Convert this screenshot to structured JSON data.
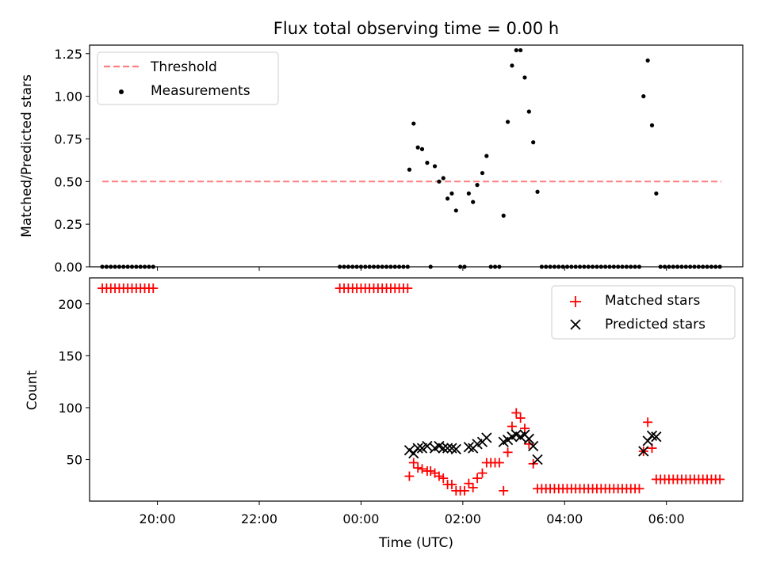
{
  "chart_data": [
    {
      "panel": "top",
      "type": "scatter",
      "title": "Flux total observing time = 0.00 h",
      "xlabel": "",
      "ylabel": "Matched/Predicted stars",
      "ylim": [
        0,
        1.3
      ],
      "yticks": [
        "0.00",
        "0.25",
        "0.50",
        "0.75",
        "1.00",
        "1.25"
      ],
      "legend_position": "top-left",
      "threshold": {
        "name": "Threshold",
        "value": 0.5,
        "x_range": [
          "18:55",
          "07:05"
        ],
        "color": "#ff7f7f"
      },
      "series": [
        {
          "name": "Measurements",
          "color": "#000000",
          "points": [
            [
              "18:55",
              0
            ],
            [
              "19:00",
              0
            ],
            [
              "19:05",
              0
            ],
            [
              "19:10",
              0
            ],
            [
              "19:15",
              0
            ],
            [
              "19:20",
              0
            ],
            [
              "19:25",
              0
            ],
            [
              "19:30",
              0
            ],
            [
              "19:35",
              0
            ],
            [
              "19:40",
              0
            ],
            [
              "19:45",
              0
            ],
            [
              "19:50",
              0
            ],
            [
              "19:55",
              0
            ],
            [
              "23:35",
              0
            ],
            [
              "23:40",
              0
            ],
            [
              "23:45",
              0
            ],
            [
              "23:50",
              0
            ],
            [
              "23:55",
              0
            ],
            [
              "00:00",
              0
            ],
            [
              "00:05",
              0
            ],
            [
              "00:10",
              0
            ],
            [
              "00:15",
              0
            ],
            [
              "00:20",
              0
            ],
            [
              "00:25",
              0
            ],
            [
              "00:30",
              0
            ],
            [
              "00:35",
              0
            ],
            [
              "00:40",
              0
            ],
            [
              "00:45",
              0
            ],
            [
              "00:50",
              0
            ],
            [
              "00:55",
              0
            ],
            [
              "00:57",
              0.57
            ],
            [
              "01:02",
              0.84
            ],
            [
              "01:07",
              0.7
            ],
            [
              "01:12",
              0.69
            ],
            [
              "01:18",
              0.61
            ],
            [
              "01:22",
              0
            ],
            [
              "01:27",
              0.59
            ],
            [
              "01:32",
              0.5
            ],
            [
              "01:37",
              0.52
            ],
            [
              "01:42",
              0.4
            ],
            [
              "01:47",
              0.43
            ],
            [
              "01:52",
              0.33
            ],
            [
              "01:57",
              0
            ],
            [
              "02:02",
              0
            ],
            [
              "02:07",
              0.43
            ],
            [
              "02:12",
              0.38
            ],
            [
              "02:17",
              0.48
            ],
            [
              "02:23",
              0.55
            ],
            [
              "02:28",
              0.65
            ],
            [
              "02:33",
              0
            ],
            [
              "02:38",
              0
            ],
            [
              "02:43",
              0
            ],
            [
              "02:48",
              0.3
            ],
            [
              "02:53",
              0.85
            ],
            [
              "02:58",
              1.18
            ],
            [
              "03:03",
              1.27
            ],
            [
              "03:08",
              1.27
            ],
            [
              "03:13",
              1.11
            ],
            [
              "03:18",
              0.91
            ],
            [
              "03:23",
              0.73
            ],
            [
              "03:28",
              0.44
            ],
            [
              "03:33",
              0
            ],
            [
              "03:38",
              0
            ],
            [
              "03:43",
              0
            ],
            [
              "03:48",
              0
            ],
            [
              "03:53",
              0
            ],
            [
              "03:58",
              0
            ],
            [
              "04:03",
              0
            ],
            [
              "04:08",
              0
            ],
            [
              "04:13",
              0
            ],
            [
              "04:18",
              0
            ],
            [
              "04:23",
              0
            ],
            [
              "04:28",
              0
            ],
            [
              "04:33",
              0
            ],
            [
              "04:38",
              0
            ],
            [
              "04:43",
              0
            ],
            [
              "04:48",
              0
            ],
            [
              "04:53",
              0
            ],
            [
              "04:58",
              0
            ],
            [
              "05:03",
              0
            ],
            [
              "05:08",
              0
            ],
            [
              "05:13",
              0
            ],
            [
              "05:18",
              0
            ],
            [
              "05:23",
              0
            ],
            [
              "05:28",
              0
            ],
            [
              "05:33",
              1.0
            ],
            [
              "05:38",
              1.21
            ],
            [
              "05:43",
              0.83
            ],
            [
              "05:48",
              0.43
            ],
            [
              "05:53",
              0
            ],
            [
              "05:58",
              0
            ],
            [
              "06:03",
              0
            ],
            [
              "06:08",
              0
            ],
            [
              "06:13",
              0
            ],
            [
              "06:18",
              0
            ],
            [
              "06:23",
              0
            ],
            [
              "06:28",
              0
            ],
            [
              "06:33",
              0
            ],
            [
              "06:38",
              0
            ],
            [
              "06:43",
              0
            ],
            [
              "06:48",
              0
            ],
            [
              "06:53",
              0
            ],
            [
              "06:58",
              0
            ],
            [
              "07:03",
              0
            ]
          ]
        }
      ]
    },
    {
      "panel": "bottom",
      "type": "scatter",
      "xlabel": "Time (UTC)",
      "ylabel": "Count",
      "ylim": [
        10,
        225
      ],
      "yticks": [
        "50",
        "100",
        "150",
        "200"
      ],
      "xticks": [
        "20:00",
        "22:00",
        "00:00",
        "02:00",
        "04:00",
        "06:00"
      ],
      "xlim": [
        "18:40",
        "07:30"
      ],
      "legend_position": "top-right",
      "series": [
        {
          "name": "Matched stars",
          "marker": "plus",
          "color": "#ff0000",
          "points": [
            [
              "18:55",
              215
            ],
            [
              "19:00",
              215
            ],
            [
              "19:05",
              215
            ],
            [
              "19:10",
              215
            ],
            [
              "19:15",
              215
            ],
            [
              "19:20",
              215
            ],
            [
              "19:25",
              215
            ],
            [
              "19:30",
              215
            ],
            [
              "19:35",
              215
            ],
            [
              "19:40",
              215
            ],
            [
              "19:45",
              215
            ],
            [
              "19:50",
              215
            ],
            [
              "19:55",
              215
            ],
            [
              "23:35",
              215
            ],
            [
              "23:40",
              215
            ],
            [
              "23:45",
              215
            ],
            [
              "23:50",
              215
            ],
            [
              "23:55",
              215
            ],
            [
              "00:00",
              215
            ],
            [
              "00:05",
              215
            ],
            [
              "00:10",
              215
            ],
            [
              "00:15",
              215
            ],
            [
              "00:20",
              215
            ],
            [
              "00:25",
              215
            ],
            [
              "00:30",
              215
            ],
            [
              "00:35",
              215
            ],
            [
              "00:40",
              215
            ],
            [
              "00:45",
              215
            ],
            [
              "00:50",
              215
            ],
            [
              "00:55",
              215
            ],
            [
              "00:57",
              34
            ],
            [
              "01:02",
              47
            ],
            [
              "01:07",
              42
            ],
            [
              "01:12",
              41
            ],
            [
              "01:18",
              39
            ],
            [
              "01:22",
              39
            ],
            [
              "01:27",
              37
            ],
            [
              "01:32",
              34
            ],
            [
              "01:37",
              32
            ],
            [
              "01:42",
              26
            ],
            [
              "01:47",
              26
            ],
            [
              "01:52",
              20
            ],
            [
              "01:57",
              20
            ],
            [
              "02:02",
              20
            ],
            [
              "02:07",
              27
            ],
            [
              "02:12",
              23
            ],
            [
              "02:17",
              32
            ],
            [
              "02:23",
              37
            ],
            [
              "02:28",
              47
            ],
            [
              "02:33",
              47
            ],
            [
              "02:38",
              47
            ],
            [
              "02:43",
              47
            ],
            [
              "02:48",
              20
            ],
            [
              "02:53",
              57
            ],
            [
              "02:58",
              82
            ],
            [
              "03:03",
              95
            ],
            [
              "03:08",
              90
            ],
            [
              "03:13",
              80
            ],
            [
              "03:18",
              65
            ],
            [
              "03:23",
              46
            ],
            [
              "03:28",
              22
            ],
            [
              "03:33",
              22
            ],
            [
              "03:38",
              22
            ],
            [
              "03:43",
              22
            ],
            [
              "03:48",
              22
            ],
            [
              "03:53",
              22
            ],
            [
              "03:58",
              22
            ],
            [
              "04:03",
              22
            ],
            [
              "04:08",
              22
            ],
            [
              "04:13",
              22
            ],
            [
              "04:18",
              22
            ],
            [
              "04:23",
              22
            ],
            [
              "04:28",
              22
            ],
            [
              "04:33",
              22
            ],
            [
              "04:38",
              22
            ],
            [
              "04:43",
              22
            ],
            [
              "04:48",
              22
            ],
            [
              "04:53",
              22
            ],
            [
              "04:58",
              22
            ],
            [
              "05:03",
              22
            ],
            [
              "05:08",
              22
            ],
            [
              "05:13",
              22
            ],
            [
              "05:18",
              22
            ],
            [
              "05:23",
              22
            ],
            [
              "05:28",
              22
            ],
            [
              "05:33",
              58
            ],
            [
              "05:38",
              86
            ],
            [
              "05:43",
              61
            ],
            [
              "05:48",
              31
            ],
            [
              "05:53",
              31
            ],
            [
              "05:58",
              31
            ],
            [
              "06:03",
              31
            ],
            [
              "06:08",
              31
            ],
            [
              "06:13",
              31
            ],
            [
              "06:18",
              31
            ],
            [
              "06:23",
              31
            ],
            [
              "06:28",
              31
            ],
            [
              "06:33",
              31
            ],
            [
              "06:38",
              31
            ],
            [
              "06:43",
              31
            ],
            [
              "06:48",
              31
            ],
            [
              "06:53",
              31
            ],
            [
              "06:58",
              31
            ],
            [
              "07:03",
              31
            ]
          ]
        },
        {
          "name": "Predicted stars",
          "marker": "x",
          "color": "#000000",
          "points": [
            [
              "00:57",
              59
            ],
            [
              "01:02",
              56
            ],
            [
              "01:07",
              61
            ],
            [
              "01:12",
              61
            ],
            [
              "01:18",
              63
            ],
            [
              "01:27",
              61
            ],
            [
              "01:32",
              63
            ],
            [
              "01:37",
              61
            ],
            [
              "01:42",
              61
            ],
            [
              "01:47",
              61
            ],
            [
              "01:52",
              60
            ],
            [
              "02:07",
              62
            ],
            [
              "02:12",
              61
            ],
            [
              "02:17",
              65
            ],
            [
              "02:23",
              67
            ],
            [
              "02:28",
              71
            ],
            [
              "02:48",
              67
            ],
            [
              "02:53",
              69
            ],
            [
              "02:58",
              72
            ],
            [
              "03:03",
              74
            ],
            [
              "03:08",
              72
            ],
            [
              "03:13",
              74
            ],
            [
              "03:18",
              70
            ],
            [
              "03:23",
              63
            ],
            [
              "03:28",
              50
            ],
            [
              "05:33",
              58
            ],
            [
              "05:38",
              68
            ],
            [
              "05:43",
              73
            ],
            [
              "05:48",
              72
            ]
          ]
        }
      ]
    }
  ]
}
